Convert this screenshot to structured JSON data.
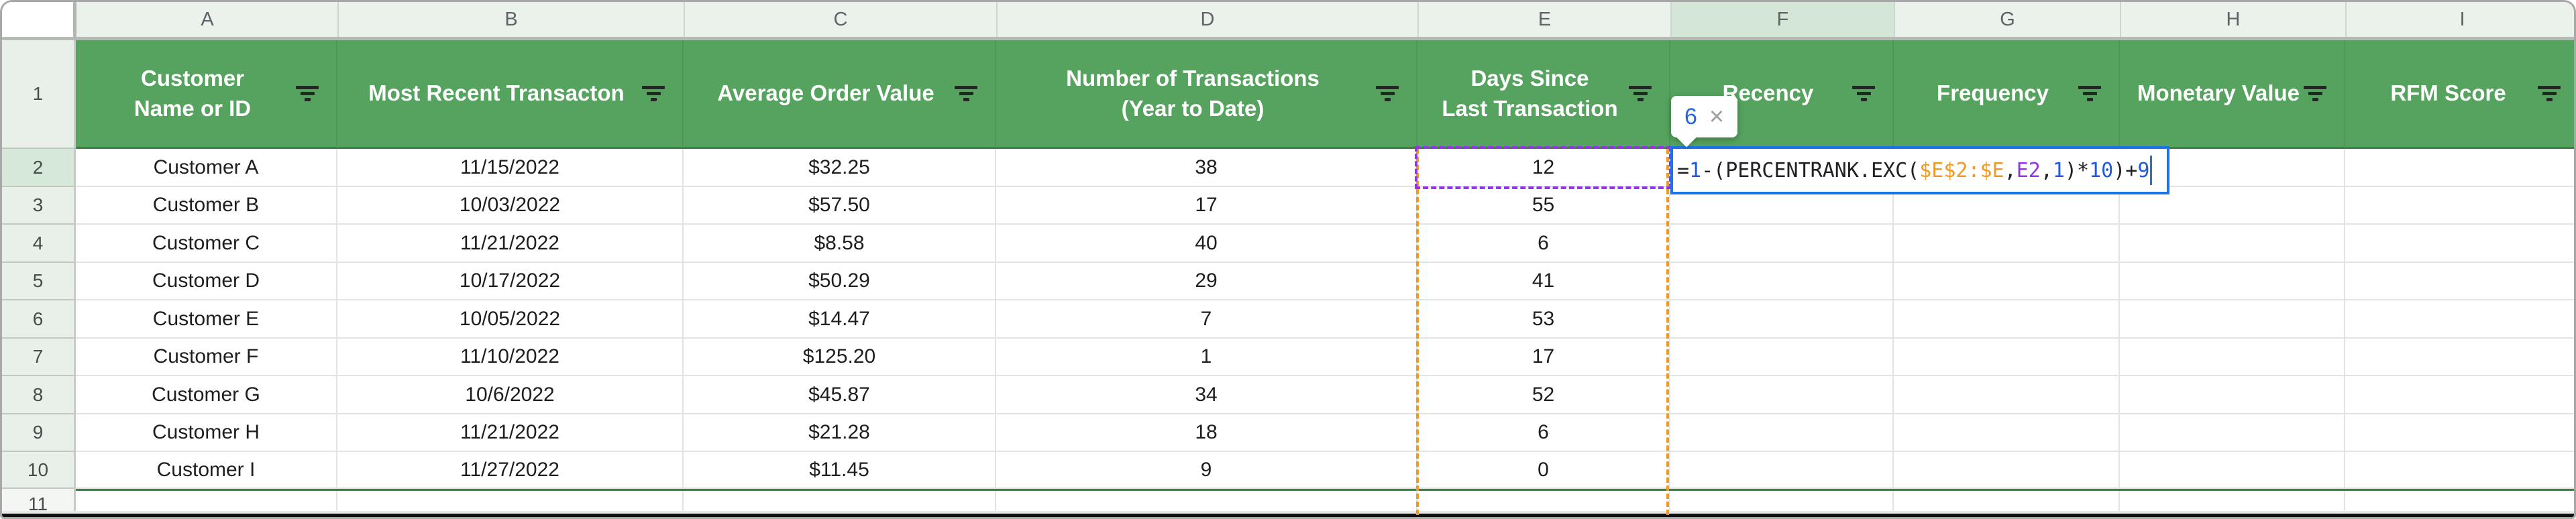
{
  "app": {
    "kind": "spreadsheet-grid"
  },
  "colors": {
    "header_fill": "#56a35f",
    "header_text": "#ffffff",
    "filter_icon": "#1f2b20",
    "filter_range_border": "#38843f",
    "active_strip_tint": "#d4e7d6",
    "editor_border": "#1a73e8",
    "reference_orange": "#f09a26",
    "reference_purple": "#9334e6",
    "number_literal_blue": "#2158e0",
    "formula_text": "#202124"
  },
  "column_strip": {
    "letters": [
      "A",
      "B",
      "C",
      "D",
      "E",
      "F",
      "G",
      "H",
      "I"
    ],
    "active_letter": "F"
  },
  "header_row": {
    "row_number": "1",
    "cells": [
      {
        "lines": [
          "Customer",
          "Name or ID"
        ]
      },
      {
        "lines": [
          "Most Recent Transacton"
        ]
      },
      {
        "lines": [
          "Average Order Value"
        ]
      },
      {
        "lines": [
          "Number of Transactions",
          "(Year to Date)"
        ]
      },
      {
        "lines": [
          "Days Since",
          "Last Transaction"
        ]
      },
      {
        "lines": [
          "Recency"
        ]
      },
      {
        "lines": [
          "Frequency"
        ]
      },
      {
        "lines": [
          "Monetary Value"
        ]
      },
      {
        "lines": [
          "RFM Score"
        ]
      }
    ]
  },
  "rows": [
    {
      "n": "2",
      "active": true,
      "cells": [
        "Customer A",
        "11/15/2022",
        "$32.25",
        "38",
        "12",
        "",
        "",
        "",
        ""
      ]
    },
    {
      "n": "3",
      "active": false,
      "cells": [
        "Customer B",
        "10/03/2022",
        "$57.50",
        "17",
        "55",
        "",
        "",
        "",
        ""
      ]
    },
    {
      "n": "4",
      "active": false,
      "cells": [
        "Customer C",
        "11/21/2022",
        "$8.58",
        "40",
        "6",
        "",
        "",
        "",
        ""
      ]
    },
    {
      "n": "5",
      "active": false,
      "cells": [
        "Customer D",
        "10/17/2022",
        "$50.29",
        "29",
        "41",
        "",
        "",
        "",
        ""
      ]
    },
    {
      "n": "6",
      "active": false,
      "cells": [
        "Customer E",
        "10/05/2022",
        "$14.47",
        "7",
        "53",
        "",
        "",
        "",
        ""
      ]
    },
    {
      "n": "7",
      "active": false,
      "cells": [
        "Customer F",
        "11/10/2022",
        "$125.20",
        "1",
        "17",
        "",
        "",
        "",
        ""
      ]
    },
    {
      "n": "8",
      "active": false,
      "cells": [
        "Customer G",
        "10/6/2022",
        "$45.87",
        "34",
        "52",
        "",
        "",
        "",
        ""
      ]
    },
    {
      "n": "9",
      "active": false,
      "cells": [
        "Customer H",
        "11/21/2022",
        "$21.28",
        "18",
        "6",
        "",
        "",
        "",
        ""
      ]
    },
    {
      "n": "10",
      "active": false,
      "cells": [
        "Customer I",
        "11/27/2022",
        "$11.45",
        "9",
        "0",
        "",
        "",
        "",
        ""
      ]
    },
    {
      "n": "11",
      "active": false,
      "cells": [
        "",
        "",
        "",
        "",
        "",
        "",
        "",
        "",
        ""
      ]
    }
  ],
  "editor": {
    "cell": "F2",
    "tokens": [
      {
        "text": "=",
        "color": "#202124"
      },
      {
        "text": "1",
        "color": "#2158e0"
      },
      {
        "text": "-(PERCENTRANK.EXC(",
        "color": "#202124"
      },
      {
        "text": "$E$2:$E",
        "color": "#f09a26"
      },
      {
        "text": ",",
        "color": "#202124"
      },
      {
        "text": "E2",
        "color": "#9334e6"
      },
      {
        "text": ",",
        "color": "#202124"
      },
      {
        "text": "1",
        "color": "#2158e0"
      },
      {
        "text": ")*",
        "color": "#202124"
      },
      {
        "text": "10",
        "color": "#2158e0"
      },
      {
        "text": ")+",
        "color": "#202124"
      },
      {
        "text": "9",
        "color": "#2158e0"
      }
    ],
    "preview": {
      "value": "6",
      "close": "×"
    },
    "referenced_column_values": [
      "12",
      "55",
      "6",
      "41",
      "53",
      "17",
      "52",
      "6",
      "0"
    ]
  }
}
